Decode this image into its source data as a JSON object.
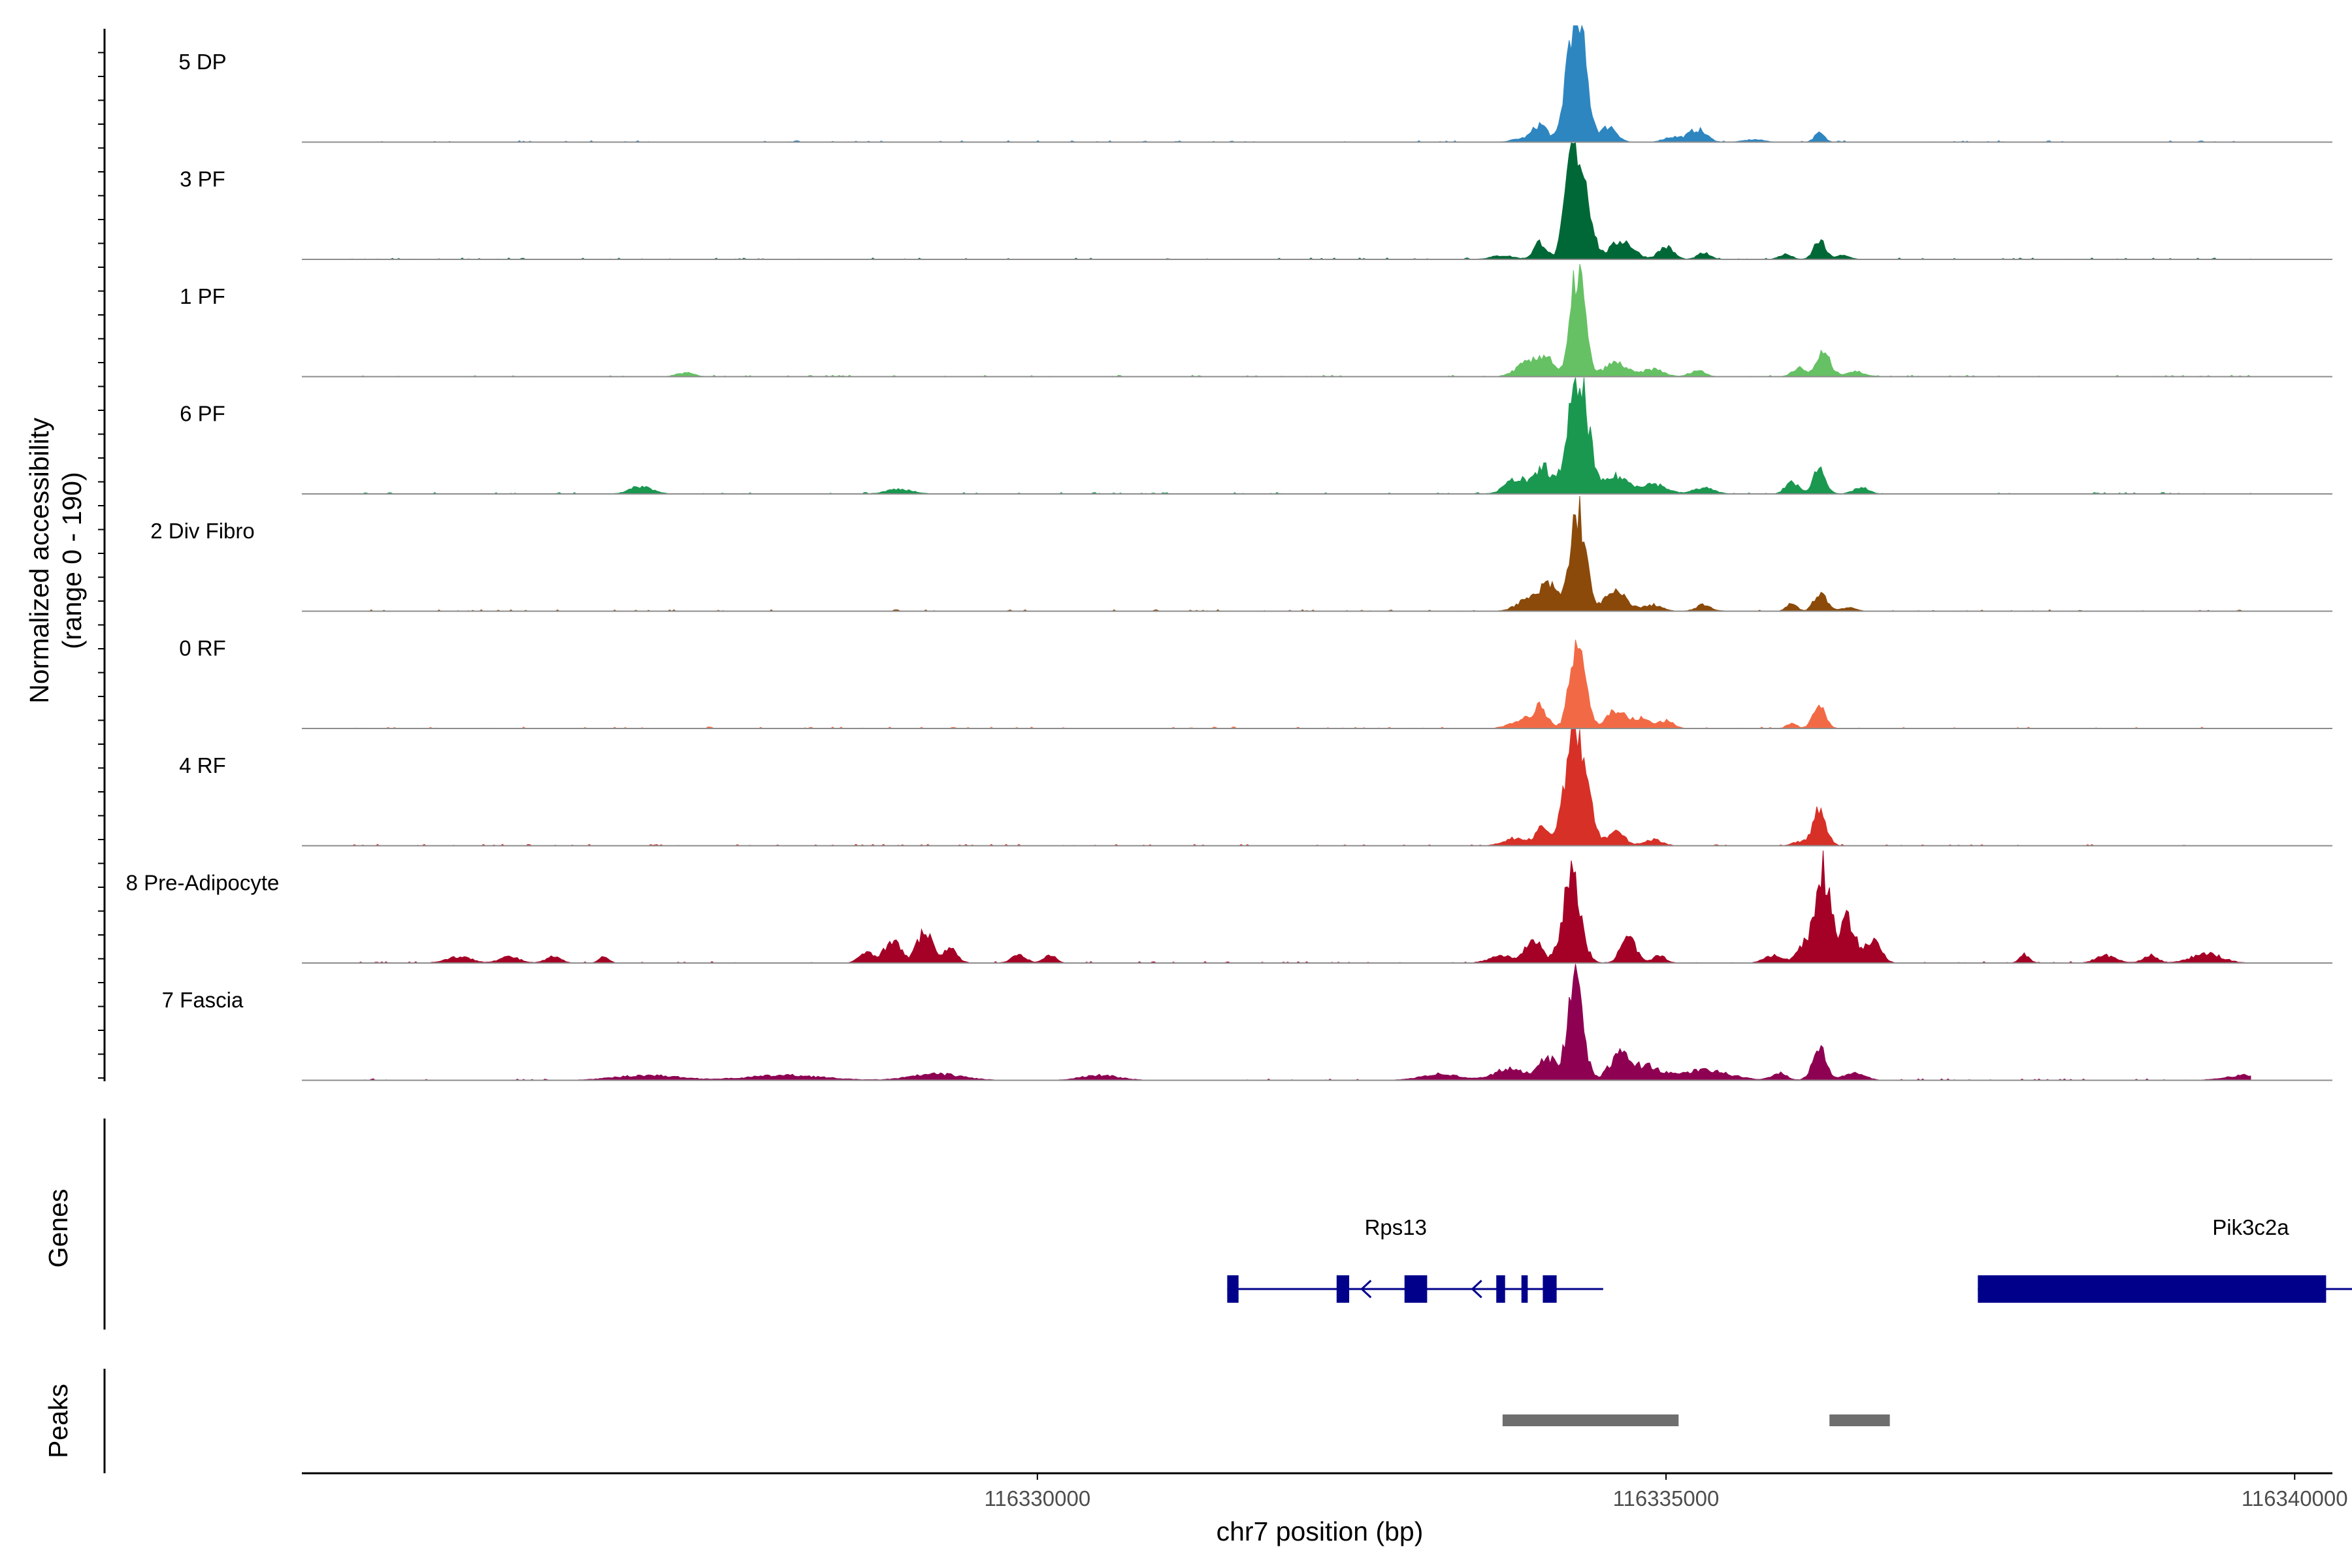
{
  "chart_data": {
    "type": "area",
    "ylabel_line1": "Normalized accessibility",
    "ylabel_line2": "(range 0 - 190)",
    "ylim": [
      0,
      190
    ],
    "xlabel": "chr7 position (bp)",
    "xlim": [
      116324150,
      116340300
    ],
    "xticks": [
      116330000,
      116335000,
      116340000
    ],
    "xtick_labels": [
      "116330000",
      "116335000",
      "116340000"
    ],
    "genes_label": "Genes",
    "peaks_label": "Peaks",
    "tracks": [
      {
        "name": "5 DP",
        "color": "#2E86C1",
        "baseline": 9,
        "peaks": [
          [
            116333840,
            5,
            70
          ],
          [
            116334000,
            28,
            60
          ],
          [
            116334250,
            150,
            55
          ],
          [
            116334330,
            120,
            60
          ],
          [
            116334550,
            25,
            60
          ],
          [
            116335250,
            20,
            70
          ],
          [
            116335050,
            8,
            70
          ],
          [
            116336220,
            14,
            40
          ],
          [
            116335700,
            4,
            80
          ]
        ]
      },
      {
        "name": "3 PF",
        "color": "#006837",
        "baseline": 10,
        "peaks": [
          [
            116333700,
            6,
            90
          ],
          [
            116334000,
            28,
            50
          ],
          [
            116334250,
            155,
            55
          ],
          [
            116334350,
            110,
            60
          ],
          [
            116334650,
            30,
            90
          ],
          [
            116335000,
            20,
            60
          ],
          [
            116335300,
            10,
            50
          ],
          [
            116335950,
            8,
            50
          ],
          [
            116336220,
            30,
            45
          ],
          [
            116336400,
            6,
            60
          ]
        ]
      },
      {
        "name": "1 PF",
        "color": "#66C164",
        "baseline": 12,
        "peaks": [
          [
            116333900,
            22,
            90
          ],
          [
            116334050,
            30,
            60
          ],
          [
            116334300,
            172,
            55
          ],
          [
            116334600,
            22,
            90
          ],
          [
            116334900,
            12,
            80
          ],
          [
            116335250,
            10,
            60
          ],
          [
            116336050,
            14,
            50
          ],
          [
            116336250,
            38,
            55
          ],
          [
            116336500,
            8,
            80
          ],
          [
            116327200,
            6,
            70
          ]
        ]
      },
      {
        "name": "6 PF",
        "color": "#1A9850",
        "baseline": 10,
        "peaks": [
          [
            116333820,
            25,
            90
          ],
          [
            116334030,
            42,
            60
          ],
          [
            116334250,
            118,
            60
          ],
          [
            116334350,
            125,
            55
          ],
          [
            116334600,
            28,
            100
          ],
          [
            116334900,
            16,
            100
          ],
          [
            116335300,
            10,
            80
          ],
          [
            116336000,
            20,
            50
          ],
          [
            116336220,
            42,
            50
          ],
          [
            116336550,
            10,
            60
          ],
          [
            116326850,
            12,
            90
          ],
          [
            116328900,
            8,
            100
          ]
        ]
      },
      {
        "name": "2 Div Fibro",
        "color": "#8B4A0A",
        "baseline": 9,
        "peaks": [
          [
            116333900,
            18,
            90
          ],
          [
            116334070,
            40,
            70
          ],
          [
            116334300,
            162,
            60
          ],
          [
            116334600,
            30,
            90
          ],
          [
            116334900,
            10,
            70
          ],
          [
            116335300,
            10,
            60
          ],
          [
            116336000,
            12,
            40
          ],
          [
            116336230,
            30,
            50
          ],
          [
            116336450,
            6,
            60
          ]
        ]
      },
      {
        "name": "0 RF",
        "color": "#F26A45",
        "baseline": 9,
        "peaks": [
          [
            116333850,
            14,
            90
          ],
          [
            116334000,
            32,
            55
          ],
          [
            116334300,
            145,
            60
          ],
          [
            116334600,
            30,
            70
          ],
          [
            116334800,
            16,
            70
          ],
          [
            116335000,
            12,
            60
          ],
          [
            116336000,
            8,
            40
          ],
          [
            116336220,
            34,
            50
          ]
        ]
      },
      {
        "name": "4 RF",
        "color": "#D73027",
        "baseline": 9,
        "peaks": [
          [
            116333800,
            12,
            90
          ],
          [
            116334020,
            28,
            55
          ],
          [
            116334250,
            160,
            65
          ],
          [
            116334350,
            100,
            60
          ],
          [
            116334600,
            22,
            70
          ],
          [
            116334900,
            10,
            70
          ],
          [
            116336220,
            55,
            55
          ],
          [
            116336050,
            6,
            50
          ]
        ]
      },
      {
        "name": "8 Pre-Adipocyte",
        "color": "#A50026",
        "baseline": 11,
        "peaks": [
          [
            116325400,
            10,
            100
          ],
          [
            116325800,
            10,
            80
          ],
          [
            116326150,
            10,
            60
          ],
          [
            116326550,
            10,
            40
          ],
          [
            116328650,
            18,
            60
          ],
          [
            116328850,
            38,
            60
          ],
          [
            116329100,
            50,
            60
          ],
          [
            116329300,
            22,
            60
          ],
          [
            116329850,
            12,
            60
          ],
          [
            116330100,
            12,
            50
          ],
          [
            116333700,
            12,
            100
          ],
          [
            116333950,
            40,
            60
          ],
          [
            116334250,
            138,
            70
          ],
          [
            116334700,
            40,
            60
          ],
          [
            116334950,
            12,
            50
          ],
          [
            116335850,
            12,
            70
          ],
          [
            116336100,
            30,
            60
          ],
          [
            116336250,
            148,
            60
          ],
          [
            116336450,
            70,
            60
          ],
          [
            116336650,
            35,
            60
          ],
          [
            116337850,
            14,
            40
          ],
          [
            116338500,
            12,
            80
          ],
          [
            116338850,
            12,
            60
          ],
          [
            116339300,
            15,
            120
          ],
          [
            116339950,
            15,
            80
          ]
        ]
      },
      {
        "name": "7 Fascia",
        "color": "#8E0152",
        "baseline": 10,
        "peaks": [
          [
            116326900,
            8,
            250
          ],
          [
            116328000,
            8,
            300
          ],
          [
            116329200,
            10,
            200
          ],
          [
            116330500,
            8,
            150
          ],
          [
            116333200,
            10,
            150
          ],
          [
            116333750,
            18,
            120
          ],
          [
            116334050,
            38,
            70
          ],
          [
            116334280,
            165,
            60
          ],
          [
            116334630,
            40,
            80
          ],
          [
            116334850,
            22,
            100
          ],
          [
            116335300,
            16,
            200
          ],
          [
            116335900,
            12,
            60
          ],
          [
            116336220,
            50,
            55
          ],
          [
            116336500,
            12,
            80
          ],
          [
            116339600,
            8,
            150
          ]
        ]
      }
    ],
    "genes": [
      {
        "name": "Rps13",
        "label_x": 116332850,
        "line": [
          116331510,
          116334500
        ],
        "exons": [
          [
            116331510,
            116331600
          ],
          [
            116332380,
            116332480
          ],
          [
            116332920,
            116333100
          ],
          [
            116333650,
            116333720
          ],
          [
            116333850,
            116333900
          ],
          [
            116334020,
            116334130
          ]
        ],
        "arrows": [
          116332580,
          116333460
        ]
      },
      {
        "name": "Pik3c2a",
        "label_x": 116339650,
        "line": [
          116337480,
          116341200
        ],
        "exons": [
          [
            116337480,
            116340250
          ]
        ],
        "arrows": [
          116340550
        ]
      }
    ],
    "peak_regions": [
      [
        116333700,
        116335100
      ],
      [
        116336300,
        116336780
      ]
    ]
  }
}
